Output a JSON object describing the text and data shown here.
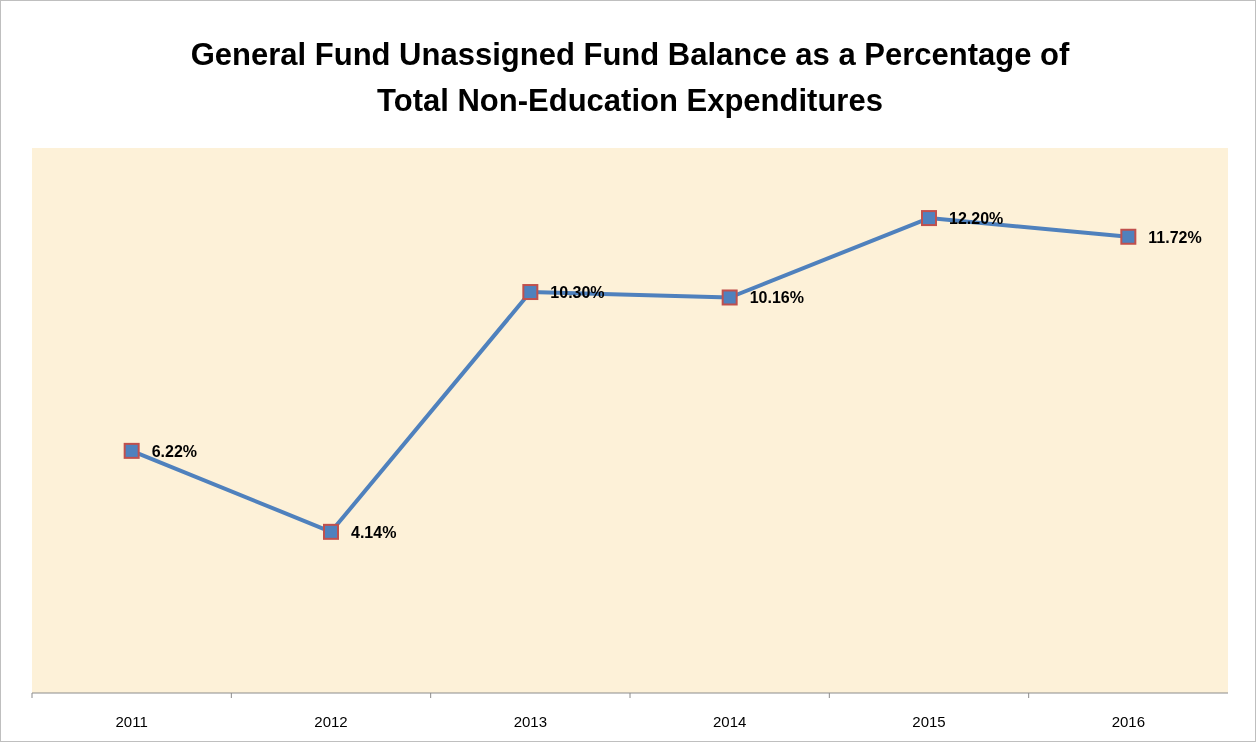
{
  "chart_data": {
    "type": "line",
    "title": "General Fund Unassigned Fund Balance as a Percentage of Total Non-Education Expenditures",
    "categories": [
      "2011",
      "2012",
      "2013",
      "2014",
      "2015",
      "2016"
    ],
    "series": [
      {
        "color": "#4f81bd",
        "values": [
          6.22,
          4.14,
          10.3,
          10.16,
          12.2,
          11.72
        ],
        "value_labels": [
          "6.22%",
          "4.14%",
          "10.30%",
          "10.16%",
          "12.20%",
          "11.72%"
        ]
      }
    ],
    "ylim": [
      0,
      14
    ],
    "tick_labels": "x",
    "marker": "square",
    "line_style": "solid"
  }
}
